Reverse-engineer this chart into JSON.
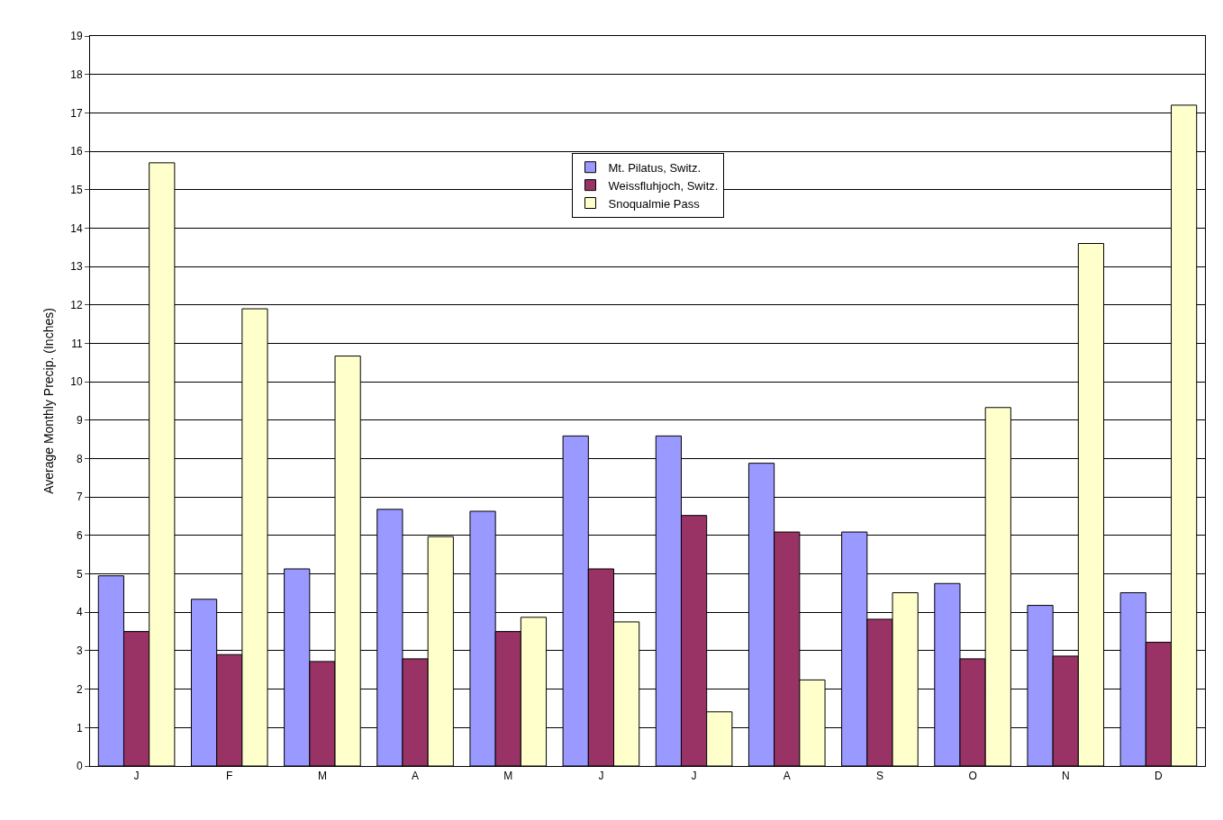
{
  "chart_data": {
    "type": "bar",
    "ylabel": "Average Monthly Precip. (Inches)",
    "categories": [
      "J",
      "F",
      "M",
      "A",
      "M",
      "J",
      "J",
      "A",
      "S",
      "O",
      "N",
      "D"
    ],
    "series": [
      {
        "name": "Mt. Pilatus, Switz.",
        "color": "#9999ff",
        "values": [
          4.95,
          4.34,
          5.13,
          6.68,
          6.63,
          8.59,
          8.59,
          7.88,
          6.09,
          4.75,
          4.18,
          4.51
        ]
      },
      {
        "name": "Weissfluhjoch, Switz.",
        "color": "#993366",
        "values": [
          3.5,
          2.9,
          2.72,
          2.79,
          3.5,
          5.13,
          6.52,
          6.09,
          3.82,
          2.79,
          2.86,
          3.22
        ]
      },
      {
        "name": "Snoqualmie Pass",
        "color": "#ffffcc",
        "values": [
          15.7,
          11.9,
          10.67,
          5.97,
          3.87,
          3.75,
          1.41,
          2.24,
          4.51,
          9.33,
          13.6,
          17.2
        ]
      }
    ],
    "ylim": [
      0,
      19
    ],
    "yticks": [
      0,
      1,
      2,
      3,
      4,
      5,
      6,
      7,
      8,
      9,
      10,
      11,
      12,
      13,
      14,
      15,
      16,
      17,
      18,
      19
    ],
    "grid": "y",
    "legend": "top"
  }
}
